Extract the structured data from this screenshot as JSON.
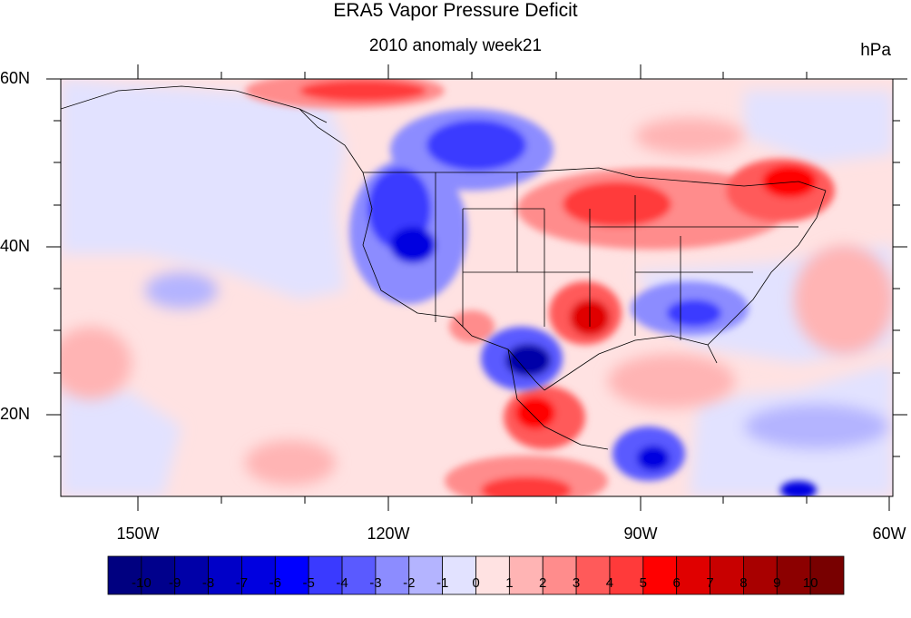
{
  "title": "ERA5 Vapor Pressure Deficit",
  "subtitle": "2010 anomaly week21",
  "units": "hPa",
  "lat_labels": [
    "60N",
    "40N",
    "20N"
  ],
  "lon_labels": [
    "150W",
    "120W",
    "90W",
    "60W"
  ],
  "colorbar": {
    "labels": [
      "-10",
      "-9",
      "-8",
      "-7",
      "-6",
      "-5",
      "-4",
      "-3",
      "-2",
      "-1",
      "0",
      "1",
      "2",
      "3",
      "4",
      "5",
      "6",
      "7",
      "8",
      "9",
      "10"
    ],
    "colors": [
      "#000080",
      "#00008c",
      "#0000a8",
      "#0000c8",
      "#0000e0",
      "#0000ff",
      "#3a3aff",
      "#5a5aff",
      "#8c8cff",
      "#b4b4ff",
      "#e2e2ff",
      "#ffe2e2",
      "#ffb4b4",
      "#ff8c8c",
      "#ff5a5a",
      "#ff3a3a",
      "#ff0000",
      "#e00000",
      "#c80000",
      "#a80000",
      "#8c0000",
      "#780000"
    ]
  },
  "chart_data": {
    "type": "heatmap",
    "title": "ERA5 Vapor Pressure Deficit",
    "subtitle": "2010 anomaly week21",
    "units": "hPa",
    "lon_range": [
      -160,
      -60
    ],
    "lat_range": [
      10,
      60
    ],
    "color_levels": [
      -10,
      -9,
      -8,
      -7,
      -6,
      -5,
      -4,
      -3,
      -2,
      -1,
      0,
      1,
      2,
      3,
      4,
      5,
      6,
      7,
      8,
      9,
      10
    ]
  }
}
